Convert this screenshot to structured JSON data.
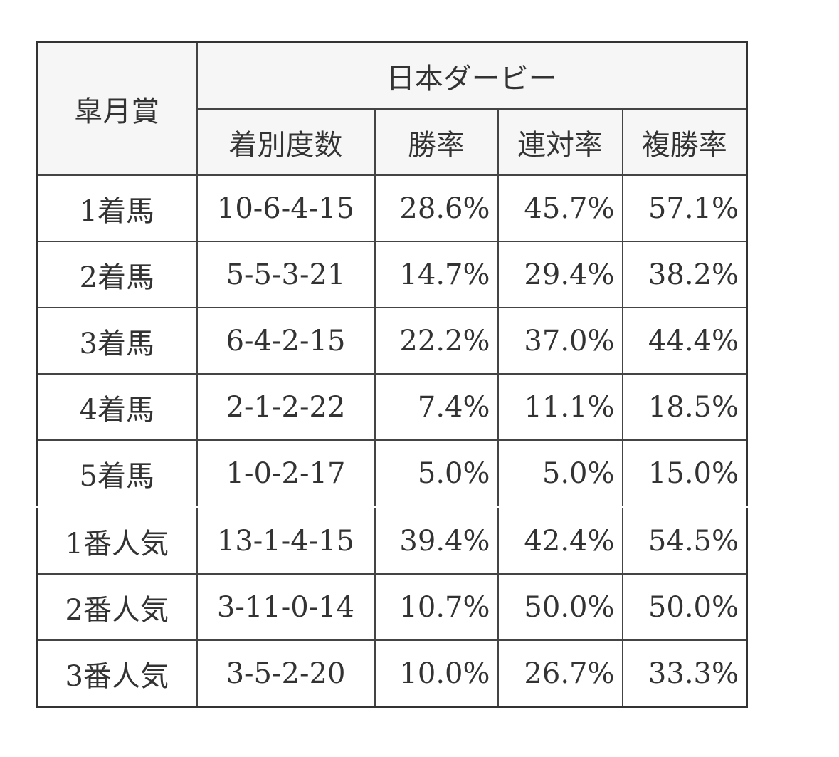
{
  "header": {
    "row_header": "皐月賞",
    "group_header": "日本ダービー",
    "columns": [
      "着別度数",
      "勝率",
      "連対率",
      "複勝率"
    ]
  },
  "rows": [
    {
      "label": "1着馬",
      "record": "10-6-4-15",
      "win": "28.6%",
      "quinella": "45.7%",
      "place": "57.1%"
    },
    {
      "label": "2着馬",
      "record": "5-5-3-21",
      "win": "14.7%",
      "quinella": "29.4%",
      "place": "38.2%"
    },
    {
      "label": "3着馬",
      "record": "6-4-2-15",
      "win": "22.2%",
      "quinella": "37.0%",
      "place": "44.4%"
    },
    {
      "label": "4着馬",
      "record": "2-1-2-22",
      "win": "7.4%",
      "quinella": "11.1%",
      "place": "18.5%"
    },
    {
      "label": "5着馬",
      "record": "1-0-2-17",
      "win": "5.0%",
      "quinella": "5.0%",
      "place": "15.0%"
    },
    {
      "label": "1番人気",
      "record": "13-1-4-15",
      "win": "39.4%",
      "quinella": "42.4%",
      "place": "54.5%"
    },
    {
      "label": "2番人気",
      "record": "3-11-0-14",
      "win": "10.7%",
      "quinella": "50.0%",
      "place": "50.0%"
    },
    {
      "label": "3番人気",
      "record": "3-5-2-20",
      "win": "10.0%",
      "quinella": "26.7%",
      "place": "33.3%"
    }
  ]
}
